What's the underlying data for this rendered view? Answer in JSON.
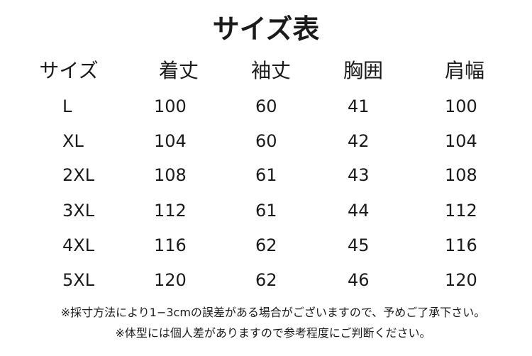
{
  "title": "サイズ表",
  "table": {
    "header": [
      "サイズ",
      "着丈",
      "袖丈",
      "胸囲",
      "肩幅"
    ],
    "rows": [
      [
        "L",
        100,
        60,
        41,
        100
      ],
      [
        "XL",
        104,
        60,
        42,
        104
      ],
      [
        "2XL",
        108,
        61,
        43,
        108
      ],
      [
        "3XL",
        112,
        61,
        44,
        112
      ],
      [
        "4XL",
        116,
        62,
        45,
        116
      ],
      [
        "5XL",
        120,
        62,
        46,
        120
      ]
    ]
  },
  "notes": [
    "※採寸方法により1−3cmの誤差がある場合がございますので、予めご了承下さい。",
    "※体型には個人差がありますので参考程度にご判断ください。"
  ]
}
